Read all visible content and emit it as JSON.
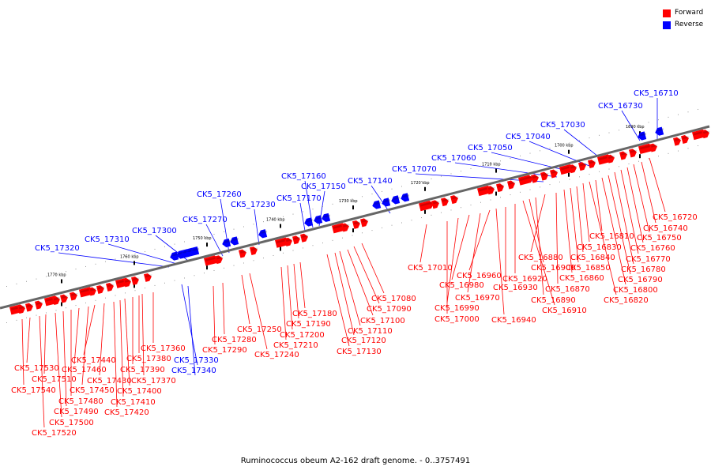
{
  "legend": {
    "forward": {
      "label": "Forward",
      "color": "#ff0000"
    },
    "reverse": {
      "label": "Reverse",
      "color": "#0000ff"
    }
  },
  "footer": "Ruminococcus obeum A2-162 draft genome. - 0..3757491",
  "colors": {
    "forward": "#ff0000",
    "reverse": "#0000ff",
    "backbone": "#666666"
  },
  "kbp_labels": [
    "1690 kbp",
    "1700 kbp",
    "1710 kbp",
    "1720 kbp",
    "1730 kbp",
    "1740 kbp",
    "1750 kbp",
    "1760 kbp",
    "1770 kbp"
  ],
  "reverse_genes": [
    "CK5_16710",
    "CK5_16730",
    "CK5_17030",
    "CK5_17040",
    "CK5_17050",
    "CK5_17060",
    "CK5_17070",
    "CK5_17140",
    "CK5_17150",
    "CK5_17160",
    "CK5_17170",
    "CK5_17230",
    "CK5_17260",
    "CK5_17270",
    "CK5_17300",
    "CK5_17310",
    "CK5_17320",
    "CK5_17330",
    "CK5_17340"
  ],
  "forward_genes": [
    "CK5_16720",
    "CK5_16740",
    "CK5_16750",
    "CK5_16760",
    "CK5_16770",
    "CK5_16780",
    "CK5_16790",
    "CK5_16800",
    "CK5_16810",
    "CK5_16820",
    "CK5_16830",
    "CK5_16840",
    "CK5_16850",
    "CK5_16860",
    "CK5_16870",
    "CK5_16880",
    "CK5_16890",
    "CK5_16900",
    "CK5_16910",
    "CK5_16920",
    "CK5_16930",
    "CK5_16940",
    "CK5_16960",
    "CK5_16970",
    "CK5_16980",
    "CK5_16990",
    "CK5_17000",
    "CK5_17010",
    "CK5_17080",
    "CK5_17090",
    "CK5_17100",
    "CK5_17110",
    "CK5_17120",
    "CK5_17130",
    "CK5_17180",
    "CK5_17190",
    "CK5_17200",
    "CK5_17210",
    "CK5_17240",
    "CK5_17250",
    "CK5_17280",
    "CK5_17290",
    "CK5_17360",
    "CK5_17370",
    "CK5_17380",
    "CK5_17390",
    "CK5_17400",
    "CK5_17410",
    "CK5_17420",
    "CK5_17430",
    "CK5_17440",
    "CK5_17450",
    "CK5_17460",
    "CK5_17480",
    "CK5_17490",
    "CK5_17500",
    "CK5_17510",
    "CK5_17520",
    "CK5_17530",
    "CK5_17540"
  ]
}
